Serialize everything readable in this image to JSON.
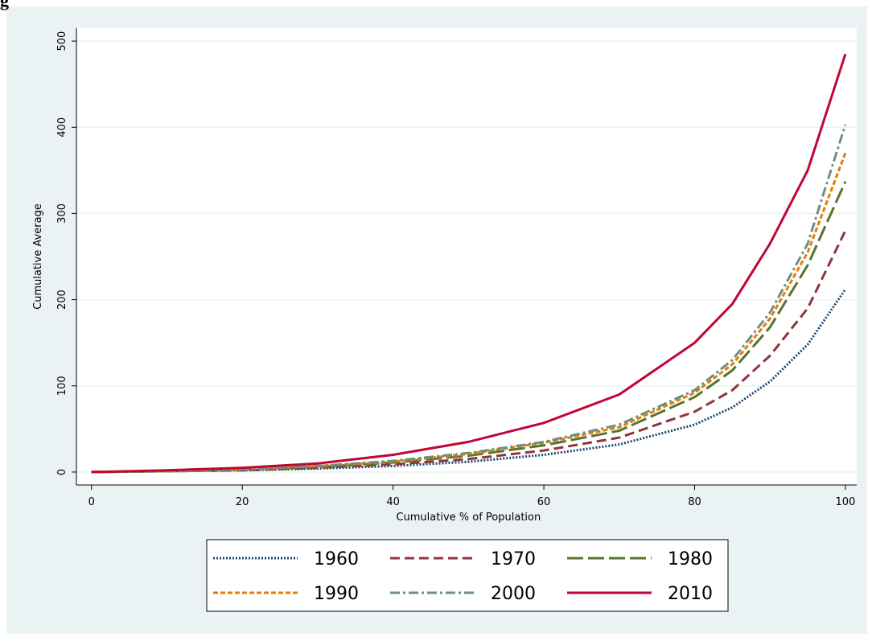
{
  "title": "g",
  "chart_data": {
    "type": "line",
    "xlabel": "Cumulative % of Population",
    "ylabel": "Cumulative Average",
    "x": [
      0,
      10,
      20,
      30,
      40,
      50,
      60,
      70,
      80,
      85,
      90,
      95,
      100
    ],
    "xlim": [
      -2,
      101.5
    ],
    "ylim": [
      -15,
      515
    ],
    "xticks": [
      0,
      20,
      40,
      60,
      80,
      100
    ],
    "yticks": [
      0,
      100,
      200,
      300,
      400,
      500
    ],
    "grid": true,
    "series": [
      {
        "name": "1960",
        "color": "#1a476f",
        "dash": "2 2",
        "values": [
          0,
          1,
          2,
          4,
          7,
          12,
          20,
          32,
          55,
          75,
          105,
          148,
          212
        ]
      },
      {
        "name": "1970",
        "color": "#90353b",
        "dash": "12 6",
        "values": [
          0,
          1,
          2,
          5,
          9,
          15,
          25,
          40,
          70,
          95,
          135,
          190,
          280
        ]
      },
      {
        "name": "1980",
        "color": "#55752f",
        "dash": "20 6",
        "values": [
          0,
          1,
          3,
          6,
          11,
          19,
          31,
          48,
          87,
          118,
          168,
          240,
          337
        ]
      },
      {
        "name": "1990",
        "color": "#e37e00",
        "dash": "6 3",
        "values": [
          0,
          1,
          3,
          7,
          12,
          21,
          34,
          52,
          92,
          125,
          178,
          255,
          370
        ]
      },
      {
        "name": "2000",
        "color": "#6e8e84",
        "dash": "12 4 3 4",
        "values": [
          0,
          1,
          3,
          7,
          13,
          22,
          35,
          55,
          95,
          130,
          185,
          265,
          403
        ]
      },
      {
        "name": "2010",
        "color": "#c10534",
        "dash": "none",
        "values": [
          0,
          2,
          5,
          10,
          20,
          35,
          57,
          90,
          150,
          195,
          265,
          350,
          485
        ]
      }
    ]
  }
}
